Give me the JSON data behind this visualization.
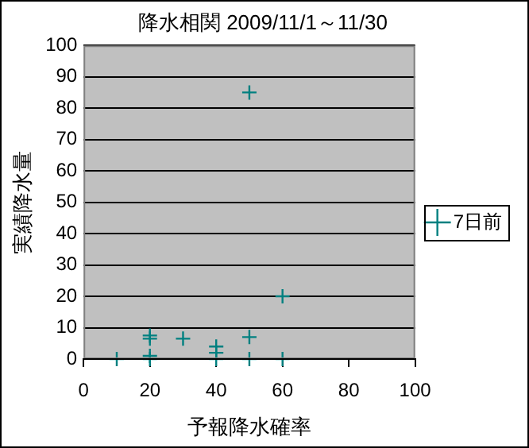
{
  "chart_data": {
    "type": "scatter",
    "title": "降水相関 2009/11/1～11/30",
    "xlabel": "予報降水確率",
    "ylabel": "実績降水量",
    "series": [
      {
        "name": "7日前",
        "color": "#008080",
        "x": [
          10,
          20,
          20,
          20,
          20,
          30,
          40,
          40,
          40,
          50,
          50,
          50,
          60,
          60
        ],
        "values": [
          0,
          0,
          1,
          6.5,
          7.5,
          6.5,
          0,
          2,
          4,
          85,
          7,
          0,
          20,
          0
        ]
      }
    ],
    "xlim": [
      0,
      100
    ],
    "xticks": [
      0,
      20,
      40,
      60,
      80,
      100
    ],
    "ylim": [
      0,
      100
    ],
    "yticks": [
      0,
      10,
      20,
      30,
      40,
      50,
      60,
      70,
      80,
      90,
      100
    ],
    "grid": "y",
    "legend": "right",
    "marker": "cross"
  }
}
